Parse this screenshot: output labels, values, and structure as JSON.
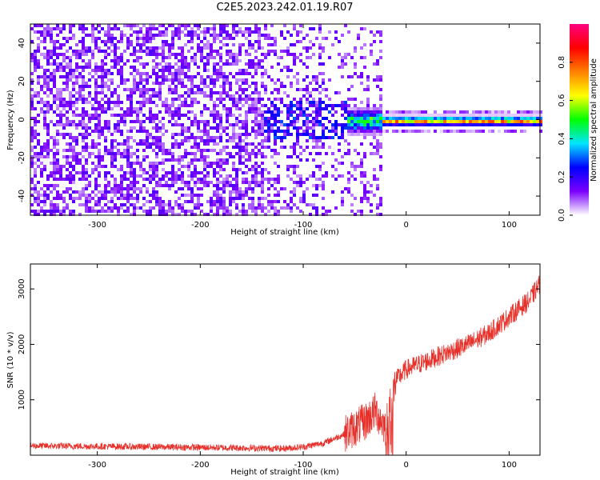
{
  "title": "C2E5.2023.242.01.19.R07",
  "chart_data": [
    {
      "type": "heatmap",
      "xlabel": "Height of straight line (km)",
      "ylabel": "Frequency (Hz)",
      "xlim": [
        -365,
        130
      ],
      "ylim": [
        -50,
        50
      ],
      "xticks": [
        -300,
        -200,
        -100,
        0,
        100
      ],
      "yticks": [
        -40,
        -20,
        0,
        20,
        40
      ],
      "colorbar": {
        "label": "Normalized spectral amplitude",
        "range": [
          0.0,
          1.0
        ],
        "ticks": [
          0.0,
          0.2,
          0.4,
          0.6,
          0.8
        ],
        "tick_labels": [
          "0.0",
          "0.2",
          "0.4",
          "0.6",
          "0.8"
        ],
        "colormap": [
          "#ffffff",
          "#7a00ff",
          "#0000ff",
          "#00e5ff",
          "#00ff00",
          "#ffff00",
          "#ff8000",
          "#ff0000",
          "#ff0080"
        ]
      },
      "signal_line": {
        "frequency": 0,
        "x_start": -25,
        "x_end": 130,
        "amplitude": 0.7,
        "turbulent_region": [
          -60,
          -25
        ]
      },
      "grid": false
    },
    {
      "type": "line",
      "xlabel": "Height of straight line (km)",
      "ylabel": "SNR (10 * v/v)",
      "xlim": [
        -365,
        130
      ],
      "ylim": [
        0,
        3450
      ],
      "xticks": [
        -300,
        -200,
        -100,
        0,
        100
      ],
      "yticks": [
        1000,
        2000,
        3000
      ],
      "color": "#e8302a",
      "series": [
        {
          "x": [
            -365,
            -300,
            -250,
            -200,
            -150,
            -120,
            -100,
            -80,
            -60,
            -40,
            -30,
            -20,
            -10,
            0,
            20,
            40,
            60,
            80,
            100,
            120,
            130
          ],
          "y": [
            170,
            160,
            150,
            140,
            130,
            120,
            150,
            220,
            380,
            600,
            800,
            500,
            1350,
            1550,
            1700,
            1850,
            2000,
            2200,
            2500,
            2800,
            3100
          ]
        }
      ],
      "grid": false
    }
  ]
}
